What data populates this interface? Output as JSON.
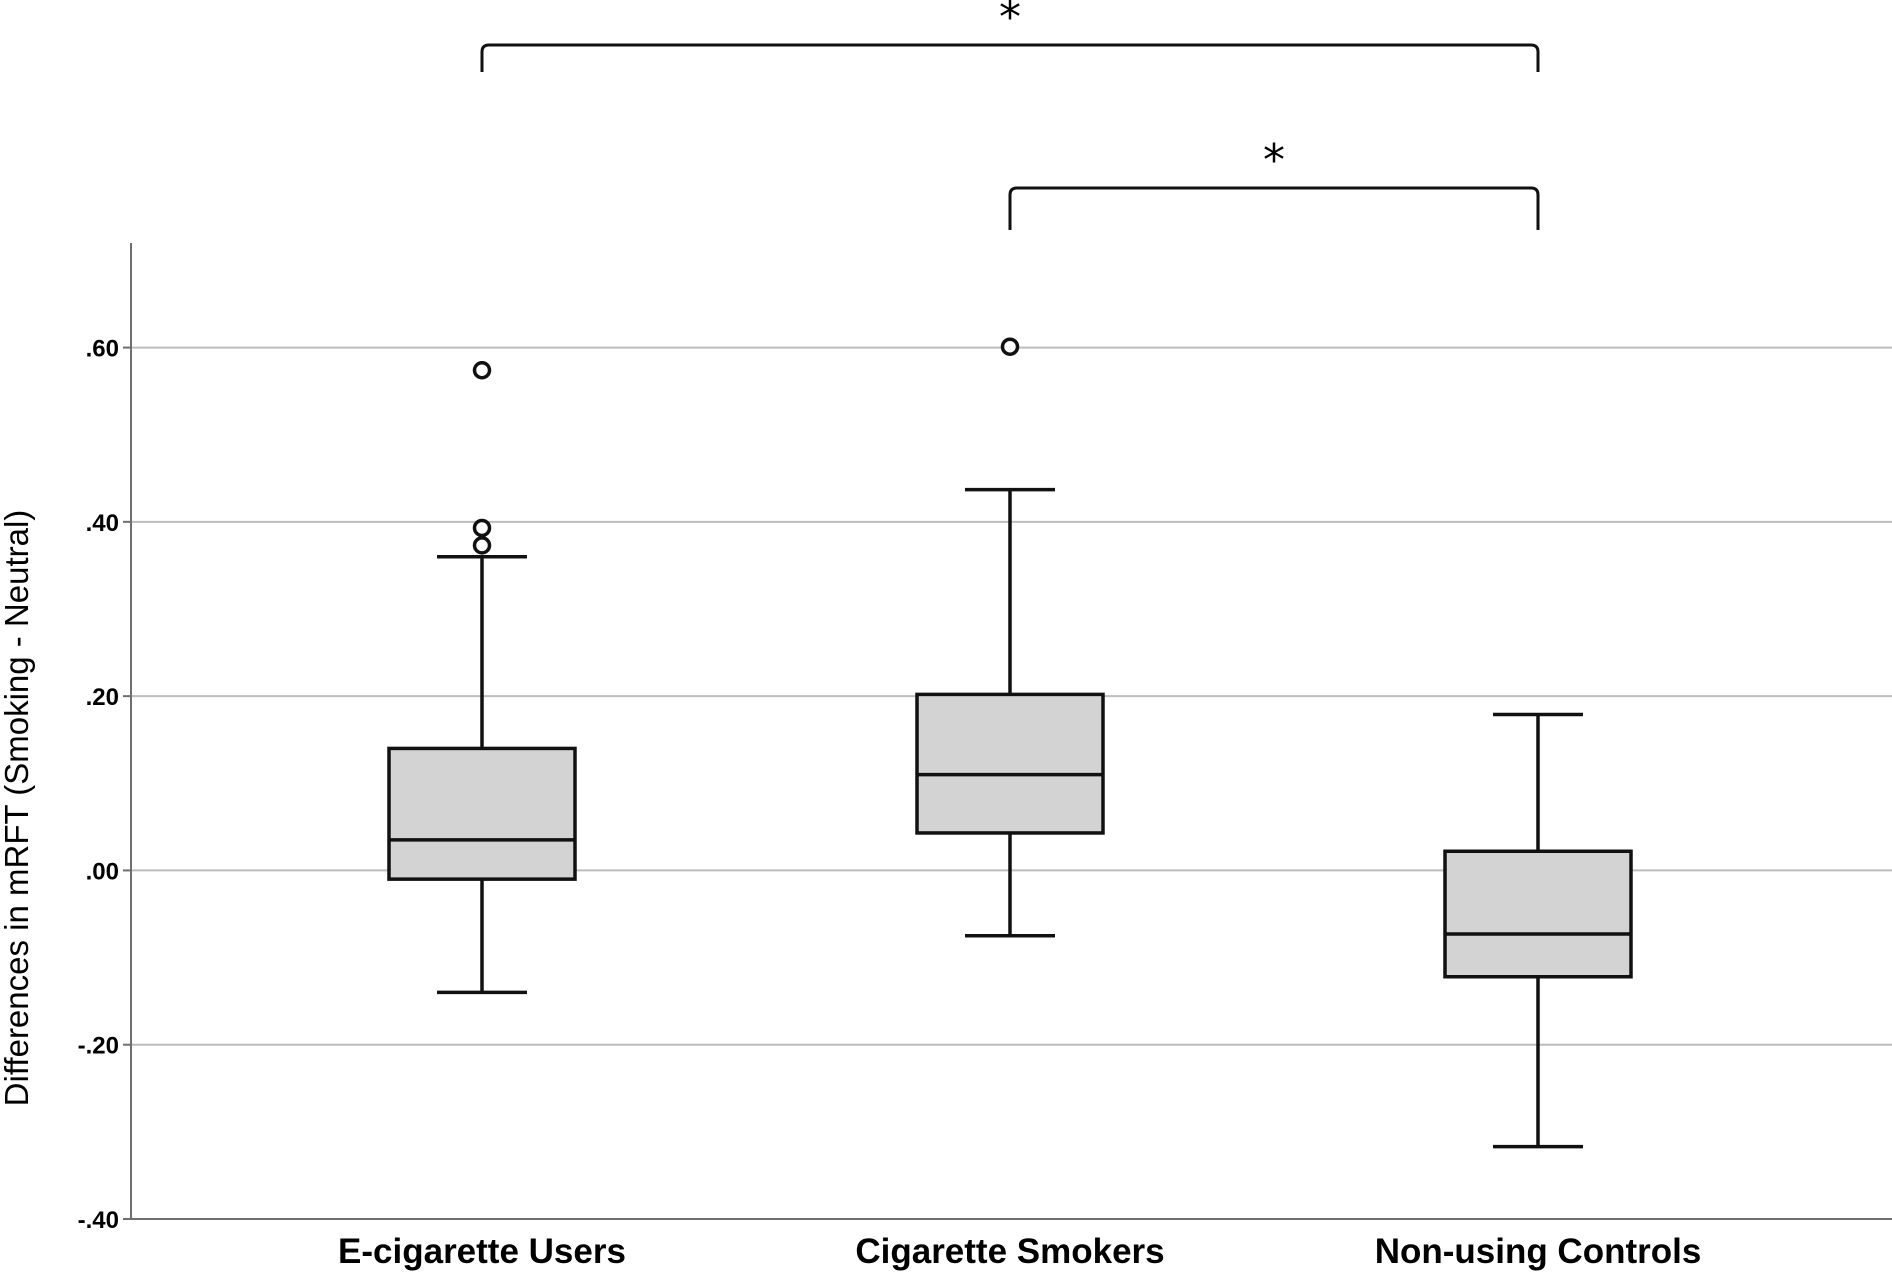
{
  "chart_data": {
    "type": "box",
    "categories": [
      "E-cigarette Users",
      "Cigarette Smokers",
      "Non-using Controls"
    ],
    "ylabel": "Differences in mRFT (Smoking - Neutral)",
    "ylim": [
      -0.4,
      0.72
    ],
    "yticks": [
      -0.4,
      -0.2,
      0.0,
      0.2,
      0.4,
      0.6
    ],
    "ytick_labels": [
      "-.40",
      "-.20",
      ".00",
      ".20",
      ".40",
      ".60"
    ],
    "grid": "horizontal",
    "box_color": "#d3d3d3",
    "boxes": [
      {
        "category": "E-cigarette Users",
        "whisker_low": -0.14,
        "q1": -0.01,
        "median": 0.035,
        "q3": 0.14,
        "whisker_high": 0.36,
        "outliers": [
          0.574,
          0.393,
          0.373
        ]
      },
      {
        "category": "Cigarette Smokers",
        "whisker_low": -0.075,
        "q1": 0.043,
        "median": 0.11,
        "q3": 0.202,
        "whisker_high": 0.437,
        "outliers": [
          0.601
        ]
      },
      {
        "category": "Non-using Controls",
        "whisker_low": -0.317,
        "q1": -0.122,
        "median": -0.073,
        "q3": 0.022,
        "whisker_high": 0.179,
        "outliers": []
      }
    ],
    "significance": [
      {
        "from": "E-cigarette Users",
        "to": "Non-using Controls",
        "label": "*"
      },
      {
        "from": "Cigarette Smokers",
        "to": "Non-using Controls",
        "label": "*"
      }
    ]
  }
}
